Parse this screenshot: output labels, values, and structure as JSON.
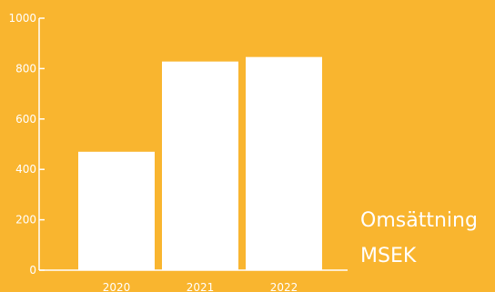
{
  "chart_data": {
    "type": "bar",
    "categories": [
      "2020",
      "2021",
      "2022"
    ],
    "values": [
      470,
      828,
      846
    ],
    "ylim": [
      0,
      1000
    ],
    "yticks": [
      0,
      200,
      400,
      600,
      800,
      1000
    ],
    "title": "",
    "xlabel": "",
    "ylabel": "",
    "legend": "right",
    "grid": false,
    "series": [
      {
        "name": "Omsättning MSEK",
        "values": [
          470,
          828,
          846
        ]
      }
    ]
  },
  "labels": {
    "line1": "Omsättning",
    "line2": "MSEK"
  },
  "colors": {
    "background": "#F9B52F",
    "bar": "#FFFFFF",
    "axis": "#FFFFFF",
    "text": "#FFFFFF"
  }
}
